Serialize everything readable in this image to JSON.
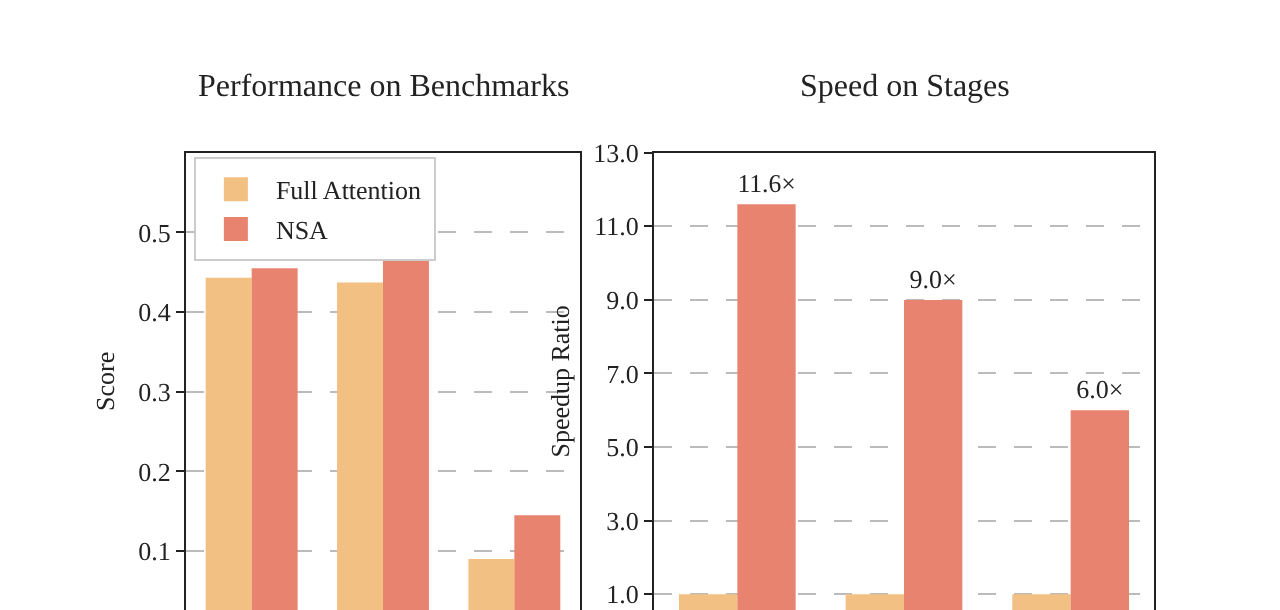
{
  "chart_data": [
    {
      "type": "bar",
      "title": "Performance on Benchmarks",
      "ylabel": "Score",
      "categories": [
        null,
        null,
        null
      ],
      "series": [
        {
          "name": "Full Attention",
          "color": "#f2c083",
          "values": [
            0.443,
            0.437,
            0.09
          ]
        },
        {
          "name": "NSA",
          "color": "#e8836f",
          "values": [
            0.455,
            0.469,
            0.145
          ]
        }
      ],
      "ylim": [
        0.026,
        0.6
      ],
      "yticks": [
        0.1,
        0.2,
        0.3,
        0.4,
        0.5
      ],
      "grid": "y",
      "legend": "top left",
      "tick_labels": "y"
    },
    {
      "type": "bar",
      "title": "Speed on Stages",
      "ylabel": "Speedup Ratio",
      "categories": [
        null,
        null,
        null
      ],
      "series": [
        {
          "color": "#f2c083",
          "values": [
            1.0,
            1.0,
            1.0
          ]
        },
        {
          "color": "#e8836f",
          "values": [
            11.6,
            9.0,
            6.0
          ],
          "value_labels": [
            "11.6×",
            "9.0×",
            "6.0×"
          ]
        }
      ],
      "ylim": [
        0.57,
        13.0
      ],
      "yticks": [
        {
          "value": 1.0,
          "label": "1.0"
        },
        {
          "value": 3.0,
          "label": "3.0"
        },
        {
          "value": 5.0,
          "label": "5.0"
        },
        {
          "value": 7.0,
          "label": "7.0"
        },
        {
          "value": 9.0,
          "label": "9.0"
        },
        {
          "value": 11.0,
          "label": "11.0"
        },
        {
          "value": 13.0,
          "label": "13.0"
        }
      ],
      "grid": "y",
      "legend": false,
      "tick_labels": "y"
    }
  ]
}
